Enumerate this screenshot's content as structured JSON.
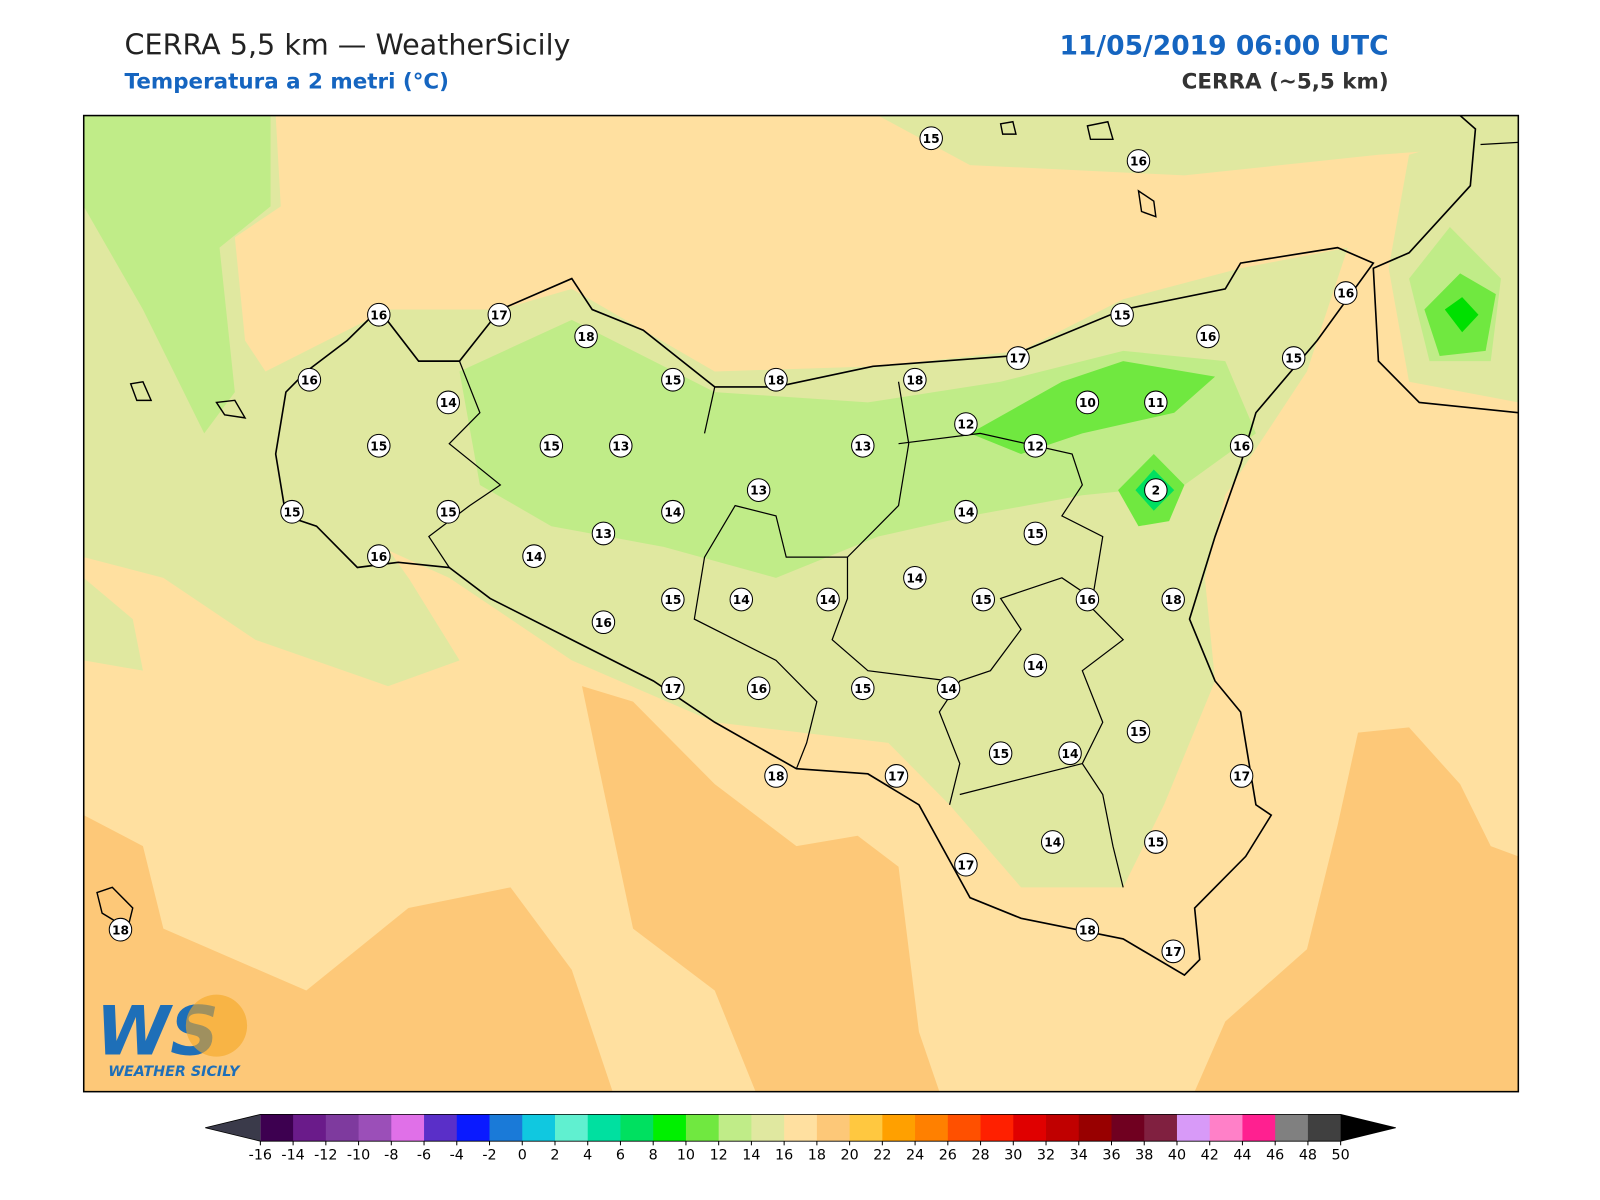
{
  "header": {
    "title": "CERRA 5,5 km — WeatherSicily",
    "subtitle": "Temperatura a 2 metri (°C)",
    "datetime": "11/05/2019 06:00 UTC",
    "model": "CERRA (~5,5 km)"
  },
  "logo": {
    "mark": "WS",
    "text": "WEATHER SICILY"
  },
  "stations": [
    15,
    16,
    16,
    17,
    18,
    16,
    14,
    15,
    15,
    18,
    18,
    17,
    15,
    16,
    16,
    15,
    10,
    11,
    12,
    12,
    16,
    2,
    15,
    13,
    13,
    13,
    15,
    15,
    14,
    13,
    14,
    15,
    14,
    16,
    15,
    14,
    14,
    14,
    15,
    16,
    18,
    16,
    14,
    17,
    16,
    15,
    14,
    15,
    15,
    14,
    17,
    18,
    17,
    14,
    15,
    17,
    18,
    17,
    18
  ],
  "colorbar": {
    "ticks": [
      -16,
      -14,
      -12,
      -10,
      -8,
      -6,
      -4,
      -2,
      0,
      2,
      4,
      6,
      8,
      10,
      12,
      14,
      16,
      18,
      20,
      22,
      24,
      26,
      28,
      30,
      32,
      34,
      36,
      38,
      40,
      42,
      44,
      46,
      48,
      50
    ],
    "colors": [
      "#3d0050",
      "#6a1b8a",
      "#7e3a9e",
      "#9b4fb8",
      "#e070e8",
      "#5a2fc8",
      "#0a1aff",
      "#1a7ad8",
      "#10c8e0",
      "#60f0d0",
      "#00e0a0",
      "#00e060",
      "#00f000",
      "#70e840",
      "#c0ec88",
      "#e0e8a0",
      "#ffe0a0",
      "#fdc878",
      "#ffc840",
      "#ffa000",
      "#ff8000",
      "#ff5000",
      "#ff2000",
      "#e00000",
      "#c00000",
      "#980000",
      "#700020",
      "#802040",
      "#d89af8",
      "#ff80c8",
      "#ff2090",
      "#808080",
      "#404040"
    ],
    "under_color": "#3a3a4a",
    "over_color": "#000000"
  }
}
